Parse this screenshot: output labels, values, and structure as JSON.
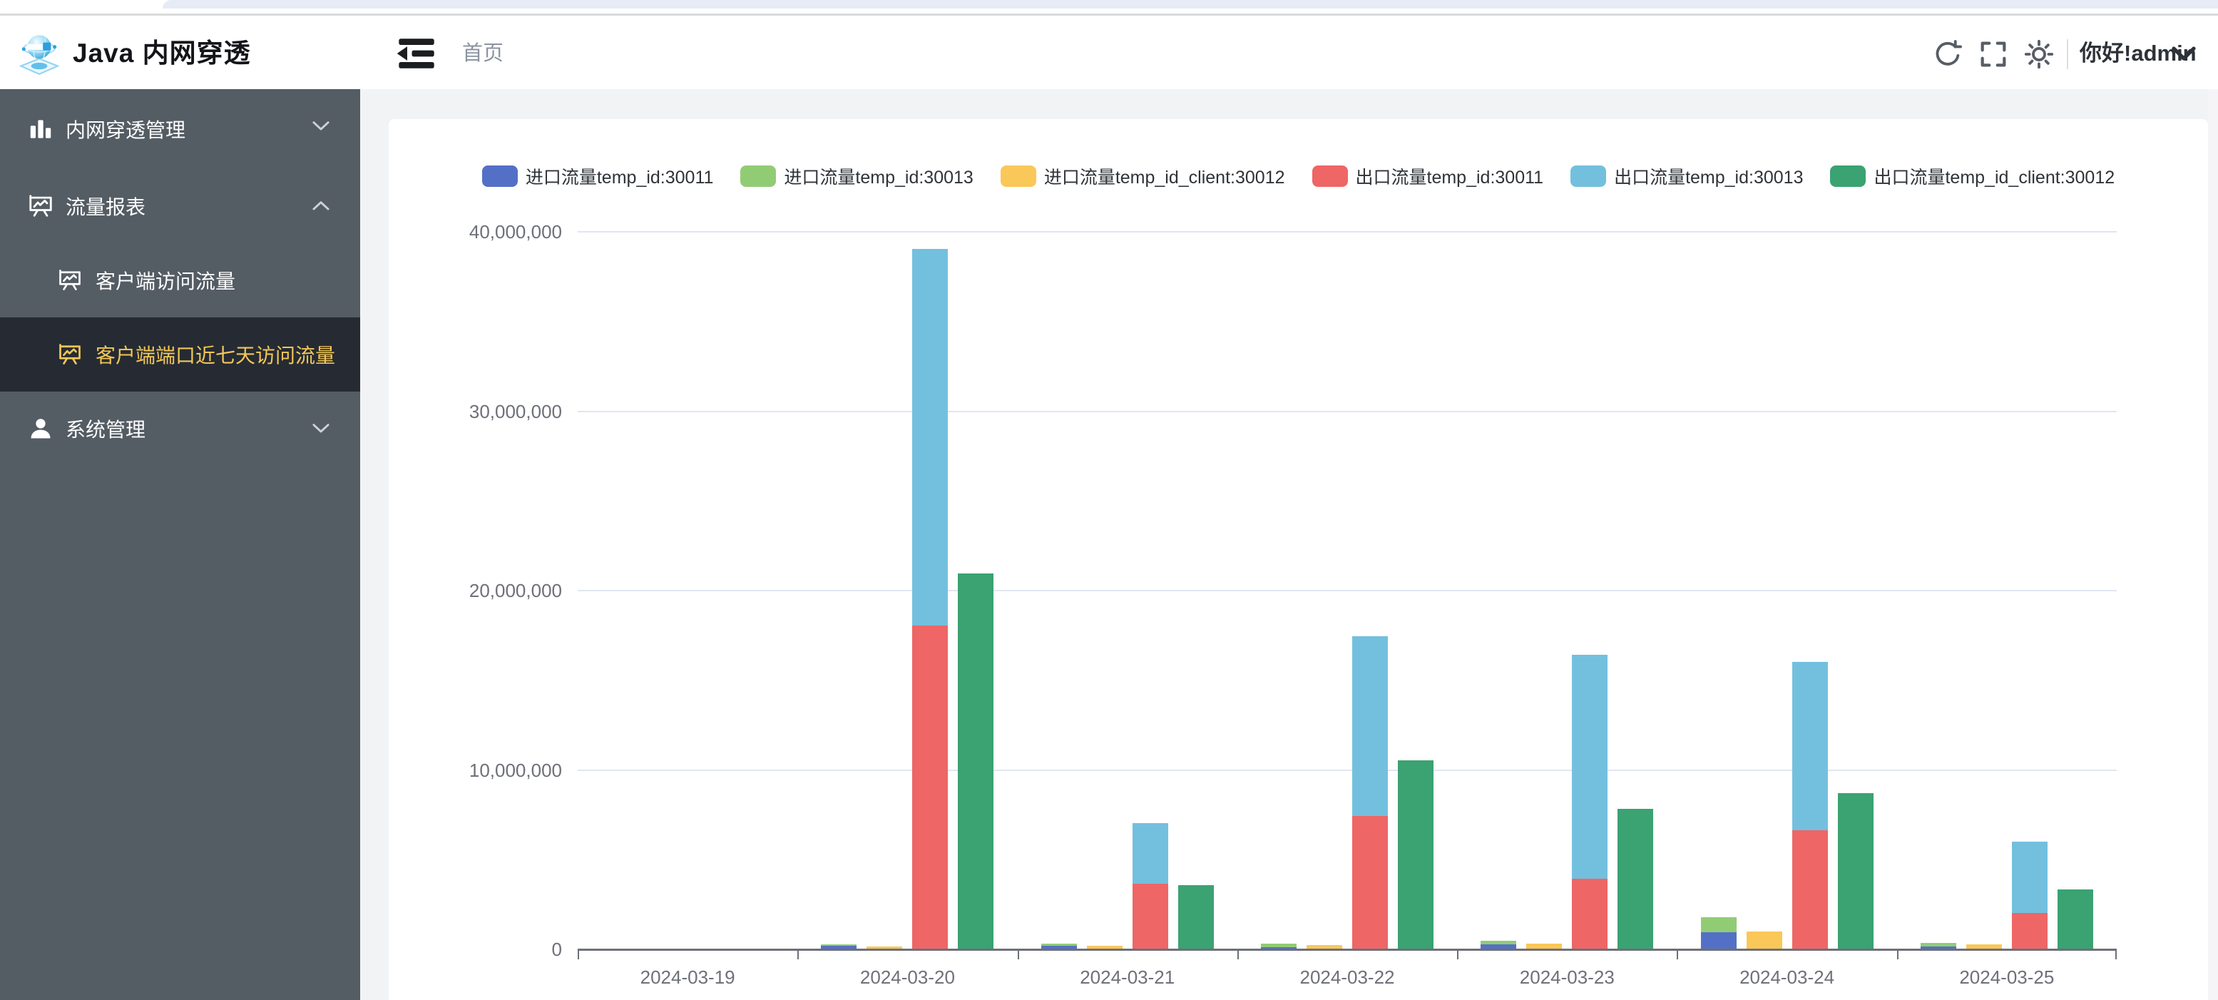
{
  "header": {
    "app_title": "Java 内网穿透",
    "breadcrumb": "首页",
    "greeting": "你好!admin",
    "icons": [
      "menu-fold-icon",
      "refresh-icon",
      "fullscreen-icon",
      "theme-sun-icon",
      "caret-down-icon"
    ]
  },
  "sidebar": {
    "items": [
      {
        "label": "内网穿透管理",
        "icon": "bar-chart-icon",
        "expanded": false
      },
      {
        "label": "流量报表",
        "icon": "presentation-chart-icon",
        "expanded": true,
        "children": [
          {
            "label": "客户端访问流量",
            "icon": "presentation-chart-icon",
            "active": false
          },
          {
            "label": "客户端端口近七天访问流量",
            "icon": "presentation-chart-icon",
            "active": true
          }
        ]
      },
      {
        "label": "系统管理",
        "icon": "user-icon",
        "expanded": false
      }
    ]
  },
  "colors": {
    "sidebar_bg": "#545c64",
    "sidebar_active_bg": "#262b33",
    "sidebar_active_text": "#f3c757",
    "axis_text": "#6e7079",
    "gridline": "#e0e6f1"
  },
  "chart_data": {
    "type": "bar",
    "title": "",
    "xlabel": "",
    "ylabel": "",
    "categories": [
      "2024-03-19",
      "2024-03-20",
      "2024-03-21",
      "2024-03-22",
      "2024-03-23",
      "2024-03-24",
      "2024-03-25"
    ],
    "series": [
      {
        "name": "进口流量temp_id:30011",
        "color": "#5470c6",
        "stack": "in",
        "values": [
          0,
          150000,
          160000,
          60000,
          240000,
          900000,
          130000
        ]
      },
      {
        "name": "进口流量temp_id:30013",
        "color": "#91cc75",
        "stack": "in",
        "values": [
          0,
          60000,
          130000,
          200000,
          200000,
          850000,
          200000
        ]
      },
      {
        "name": "进口流量temp_id_client:30012",
        "color": "#fac858",
        "stack": "in_client",
        "values": [
          0,
          120000,
          160000,
          200000,
          260000,
          950000,
          220000
        ]
      },
      {
        "name": "出口流量temp_id:30011",
        "color": "#ee6666",
        "stack": "out",
        "values": [
          0,
          18000000,
          3600000,
          7400000,
          3900000,
          6600000,
          2000000
        ]
      },
      {
        "name": "出口流量temp_id:30013",
        "color": "#73c0de",
        "stack": "out",
        "values": [
          0,
          21000000,
          3400000,
          10000000,
          12500000,
          9400000,
          3950000
        ]
      },
      {
        "name": "出口流量temp_id_client:30012",
        "color": "#3ba272",
        "stack": "out_client",
        "values": [
          0,
          20900000,
          3550000,
          10500000,
          7800000,
          8650000,
          3300000
        ]
      }
    ],
    "ylim": [
      0,
      40000000
    ],
    "yticks": [
      0,
      10000000,
      20000000,
      30000000,
      40000000
    ],
    "ytick_labels": [
      "0",
      "10,000,000",
      "20,000,000",
      "30,000,000",
      "40,000,000"
    ],
    "grid": true,
    "legend_position": "top"
  }
}
